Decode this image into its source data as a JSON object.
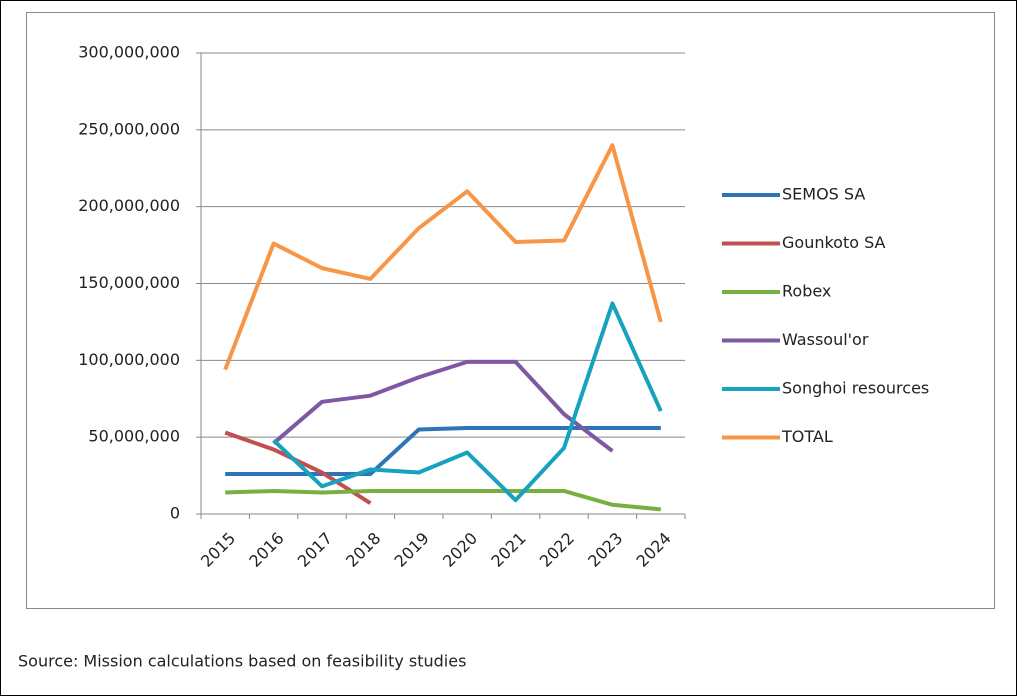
{
  "chart_data": {
    "type": "line",
    "categories": [
      "2015",
      "2016",
      "2017",
      "2018",
      "2019",
      "2020",
      "2021",
      "2022",
      "2023",
      "2024"
    ],
    "series": [
      {
        "name": "SEMOS SA",
        "color": "#2e75b6",
        "values": [
          26000000,
          26000000,
          26000000,
          26000000,
          55000000,
          56000000,
          56000000,
          56000000,
          56000000,
          56000000
        ]
      },
      {
        "name": "Gounkoto SA",
        "color": "#c0504d",
        "values": [
          53000000,
          42000000,
          27000000,
          7000000,
          null,
          null,
          null,
          null,
          null,
          null
        ]
      },
      {
        "name": "Robex",
        "color": "#77b041",
        "values": [
          14000000,
          15000000,
          14000000,
          15000000,
          15000000,
          15000000,
          15000000,
          15000000,
          6000000,
          3000000
        ]
      },
      {
        "name": "Wassoul'or",
        "color": "#7f58a4",
        "values": [
          null,
          46000000,
          73000000,
          77000000,
          89000000,
          99000000,
          99000000,
          65000000,
          41000000,
          null
        ]
      },
      {
        "name": "Songhoi resources",
        "color": "#17a2c0",
        "values": [
          null,
          48000000,
          18000000,
          29000000,
          27000000,
          40000000,
          9000000,
          43000000,
          137000000,
          67000000
        ]
      },
      {
        "name": "TOTAL",
        "color": "#f79646",
        "values": [
          94000000,
          176000000,
          160000000,
          153000000,
          186000000,
          210000000,
          177000000,
          178000000,
          240000000,
          125000000
        ]
      }
    ],
    "ylim": [
      0,
      300000000
    ],
    "yticks": [
      0,
      {
        "value": 50000000,
        "label": "50,000,000"
      },
      {
        "value": 100000000,
        "label": "100,000,000"
      },
      {
        "value": 150000000,
        "label": "150,000,000"
      },
      {
        "value": 200000000,
        "label": "200,000,000"
      },
      {
        "value": 250000000,
        "label": "250,000,000"
      },
      {
        "value": 300000000,
        "label": "300,000,000"
      }
    ],
    "grid": true,
    "legend": "right",
    "source": "Source: Mission calculations based on feasibility studies"
  }
}
